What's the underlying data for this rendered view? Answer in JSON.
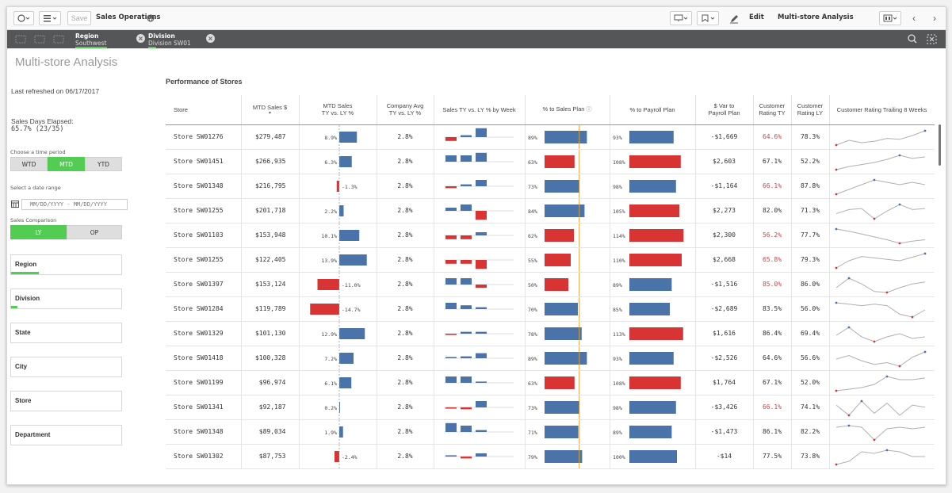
{
  "toolbar": {
    "app_name": "Sales Operations",
    "save_label": "Save",
    "edit_label": "Edit",
    "sheet_name": "Multi-store Analysis"
  },
  "selections": [
    {
      "field": "Region",
      "value": "Southwest"
    },
    {
      "field": "Division",
      "value": "Division SW01"
    }
  ],
  "left_panel": {
    "title": "Multi-store Analysis",
    "last_refreshed": "Last refreshed on 06/17/2017",
    "sales_days_label": "Sales Days Elapsed:",
    "sales_days_value": "65.7% (23/35)",
    "time_period_label": "Choose a time period",
    "time_periods": [
      "WTD",
      "MTD",
      "YTD"
    ],
    "time_period_selected": "MTD",
    "date_range_label": "Select a date range",
    "date_range_placeholder": "MM/DD/YYYY - MM/DD/YYYY",
    "comparison_label": "Sales Comparison",
    "comparisons": [
      "LY",
      "OP"
    ],
    "comparison_selected": "LY",
    "filters": [
      {
        "label": "Region",
        "selected_fraction": 0.25
      },
      {
        "label": "Division",
        "selected_fraction": 0.06
      },
      {
        "label": "State",
        "selected_fraction": 0
      },
      {
        "label": "City",
        "selected_fraction": 0
      },
      {
        "label": "Store",
        "selected_fraction": 0
      },
      {
        "label": "Department",
        "selected_fraction": 0
      }
    ]
  },
  "table": {
    "title": "Performance of Stores",
    "headers": [
      "Store",
      "MTD Sales $",
      "MTD Sales\nTY vs. LY %",
      "Company Avg\nTY vs. LY %",
      "Sales TY vs. LY % by Week",
      "% to Sales Plan",
      "% to Payroll Plan",
      "$ Var to\nPayroll Plan",
      "Customer\nRating TY",
      "Customer\nRating LY",
      "Customer Rating Trailing 8 Weeks"
    ],
    "colors": {
      "blue": "#4a73a9",
      "red": "#d93434",
      "target_line": "#e0a020",
      "highlight": "#d94040"
    },
    "rows": [
      {
        "store": "Store SW01276",
        "mtd_sales": "$279,487",
        "ty_vs_ly": 8.9,
        "ty_vs_ly_label": "8.9%",
        "company_avg": "2.8%",
        "weeks": [
          -0.6,
          0.3,
          1.4,
          0
        ],
        "sales_plan": 89,
        "sales_plan_label": "89%",
        "payroll_plan": 93,
        "payroll_plan_label": "93%",
        "var_payroll": "-$1,669",
        "rating_ty": "64.6%",
        "rating_ty_low": true,
        "rating_ly": "78.3%",
        "trailing": [
          30,
          40,
          35,
          38,
          44,
          42,
          50,
          60
        ]
      },
      {
        "store": "Store SW01451",
        "mtd_sales": "$266,935",
        "ty_vs_ly": 6.3,
        "ty_vs_ly_label": "6.3%",
        "company_avg": "2.8%",
        "weeks": [
          1.0,
          1.0,
          1.4,
          0
        ],
        "sales_plan": 63,
        "sales_plan_label": "63%",
        "payroll_plan": 108,
        "payroll_plan_label": "108%",
        "var_payroll": "$2,603",
        "rating_ty": "67.1%",
        "rating_ty_low": false,
        "rating_ly": "52.2%",
        "trailing": [
          30,
          36,
          40,
          44,
          50,
          58,
          52,
          55
        ]
      },
      {
        "store": "Store SW01348",
        "mtd_sales": "$216,795",
        "ty_vs_ly": -1.3,
        "ty_vs_ly_label": "-1.3%",
        "company_avg": "2.8%",
        "weeks": [
          -0.3,
          0.3,
          1.0,
          0
        ],
        "sales_plan": 73,
        "sales_plan_label": "73%",
        "payroll_plan": 98,
        "payroll_plan_label": "98%",
        "var_payroll": "-$1,164",
        "rating_ty": "66.1%",
        "rating_ty_low": true,
        "rating_ly": "87.8%",
        "trailing": [
          50,
          52,
          54,
          56,
          55,
          54,
          55,
          54
        ]
      },
      {
        "store": "Store SW01255",
        "mtd_sales": "$201,718",
        "ty_vs_ly": 2.2,
        "ty_vs_ly_label": "2.2%",
        "company_avg": "2.8%",
        "weeks": [
          0.5,
          1.0,
          -1.4,
          0
        ],
        "sales_plan": 84,
        "sales_plan_label": "84%",
        "payroll_plan": 105,
        "payroll_plan_label": "105%",
        "var_payroll": "$2,273",
        "rating_ty": "82.0%",
        "rating_ty_low": false,
        "rating_ly": "71.3%",
        "trailing": [
          40,
          48,
          50,
          30,
          45,
          58,
          48,
          50
        ]
      },
      {
        "store": "Store SW01103",
        "mtd_sales": "$153,948",
        "ty_vs_ly": 10.1,
        "ty_vs_ly_label": "10.1%",
        "company_avg": "2.8%",
        "weeks": [
          -0.6,
          -0.6,
          0.5,
          0
        ],
        "sales_plan": 62,
        "sales_plan_label": "62%",
        "payroll_plan": 114,
        "payroll_plan_label": "114%",
        "var_payroll": "$2,300",
        "rating_ty": "56.2%",
        "rating_ty_low": true,
        "rating_ly": "77.7%",
        "trailing": [
          55,
          52,
          48,
          44,
          40,
          35,
          38,
          40
        ]
      },
      {
        "store": "Store SW01255",
        "mtd_sales": "$122,405",
        "ty_vs_ly": 13.9,
        "ty_vs_ly_label": "13.9%",
        "company_avg": "2.8%",
        "weeks": [
          -0.6,
          -0.6,
          -1.4,
          0
        ],
        "sales_plan": 55,
        "sales_plan_label": "55%",
        "payroll_plan": 110,
        "payroll_plan_label": "110%",
        "var_payroll": "$2,668",
        "rating_ty": "65.8%",
        "rating_ty_low": true,
        "rating_ly": "79.3%",
        "trailing": [
          30,
          40,
          46,
          44,
          42,
          40,
          45,
          50
        ]
      },
      {
        "store": "Store SW01397",
        "mtd_sales": "$153,124",
        "ty_vs_ly": -11.0,
        "ty_vs_ly_label": "-11.0%",
        "company_avg": "2.8%",
        "weeks": [
          1.0,
          1.0,
          -0.5,
          0
        ],
        "sales_plan": 50,
        "sales_plan_label": "50%",
        "payroll_plan": 89,
        "payroll_plan_label": "89%",
        "var_payroll": "-$1,516",
        "rating_ty": "85.0%",
        "rating_ty_low": true,
        "rating_ly": "86.0%",
        "trailing": [
          40,
          50,
          44,
          36,
          35,
          40,
          44,
          46
        ]
      },
      {
        "store": "Store SW01284",
        "mtd_sales": "$119,789",
        "ty_vs_ly": -14.7,
        "ty_vs_ly_label": "-14.7%",
        "company_avg": "2.8%",
        "weeks": [
          1.0,
          0.6,
          0.3,
          0
        ],
        "sales_plan": 70,
        "sales_plan_label": "70%",
        "payroll_plan": 85,
        "payroll_plan_label": "85%",
        "var_payroll": "-$2,689",
        "rating_ty": "83.5%",
        "rating_ty_low": false,
        "rating_ly": "56.0%",
        "trailing": [
          54,
          52,
          50,
          52,
          50,
          38,
          34,
          44
        ]
      },
      {
        "store": "Store SW01329",
        "mtd_sales": "$101,130",
        "ty_vs_ly": 12.9,
        "ty_vs_ly_label": "12.9%",
        "company_avg": "2.8%",
        "weeks": [
          -0.2,
          0.3,
          0.3,
          0
        ],
        "sales_plan": 78,
        "sales_plan_label": "78%",
        "payroll_plan": 113,
        "payroll_plan_label": "113%",
        "var_payroll": "$1,616",
        "rating_ty": "86.4%",
        "rating_ty_low": false,
        "rating_ly": "69.4%",
        "trailing": [
          44,
          54,
          42,
          36,
          42,
          46,
          40,
          42
        ]
      },
      {
        "store": "Store SW01418",
        "mtd_sales": "$100,328",
        "ty_vs_ly": 7.2,
        "ty_vs_ly_label": "7.2%",
        "company_avg": "2.8%",
        "weeks": [
          0.2,
          0.3,
          0.8,
          0
        ],
        "sales_plan": 89,
        "sales_plan_label": "89%",
        "payroll_plan": 93,
        "payroll_plan_label": "93%",
        "var_payroll": "-$2,526",
        "rating_ty": "64.6%",
        "rating_ty_low": false,
        "rating_ly": "56.6%",
        "trailing": [
          46,
          50,
          44,
          40,
          42,
          38,
          48,
          54
        ]
      },
      {
        "store": "Store SW01199",
        "mtd_sales": "$96,974",
        "ty_vs_ly": 6.1,
        "ty_vs_ly_label": "6.1%",
        "company_avg": "2.8%",
        "weeks": [
          1.0,
          1.0,
          0.2,
          0
        ],
        "sales_plan": 63,
        "sales_plan_label": "63%",
        "payroll_plan": 108,
        "payroll_plan_label": "108%",
        "var_payroll": "$1,764",
        "rating_ty": "67.1%",
        "rating_ty_low": false,
        "rating_ly": "52.0%",
        "trailing": [
          36,
          38,
          40,
          44,
          54,
          50,
          50,
          52
        ]
      },
      {
        "store": "Store SW01341",
        "mtd_sales": "$92,187",
        "ty_vs_ly": 0.2,
        "ty_vs_ly_label": "0.2%",
        "company_avg": "2.8%",
        "weeks": [
          -0.2,
          -0.3,
          1.0,
          0
        ],
        "sales_plan": 73,
        "sales_plan_label": "73%",
        "payroll_plan": 98,
        "payroll_plan_label": "98%",
        "var_payroll": "-$3,426",
        "rating_ty": "66.1%",
        "rating_ty_low": true,
        "rating_ly": "74.1%",
        "trailing": [
          50,
          40,
          54,
          42,
          52,
          40,
          50,
          48
        ]
      },
      {
        "store": "Store SW01348",
        "mtd_sales": "$89,034",
        "ty_vs_ly": 1.9,
        "ty_vs_ly_label": "1.9%",
        "company_avg": "2.8%",
        "weeks": [
          1.4,
          1.0,
          0.3,
          0
        ],
        "sales_plan": 71,
        "sales_plan_label": "71%",
        "payroll_plan": 89,
        "payroll_plan_label": "89%",
        "var_payroll": "-$1,473",
        "rating_ty": "86.1%",
        "rating_ty_low": false,
        "rating_ly": "82.2%",
        "trailing": [
          50,
          52,
          50,
          34,
          48,
          50,
          48,
          50
        ]
      },
      {
        "store": "Store SW01302",
        "mtd_sales": "$87,753",
        "ty_vs_ly": -2.4,
        "ty_vs_ly_label": "-2.4%",
        "company_avg": "2.8%",
        "weeks": [
          0.2,
          -0.3,
          0.5,
          0
        ],
        "sales_plan": 79,
        "sales_plan_label": "79%",
        "payroll_plan": 100,
        "payroll_plan_label": "100%",
        "var_payroll": "-$14",
        "rating_ty": "77.5%",
        "rating_ty_low": false,
        "rating_ly": "73.8%",
        "trailing": [
          36,
          40,
          52,
          50,
          54,
          52,
          46,
          46
        ]
      }
    ]
  }
}
